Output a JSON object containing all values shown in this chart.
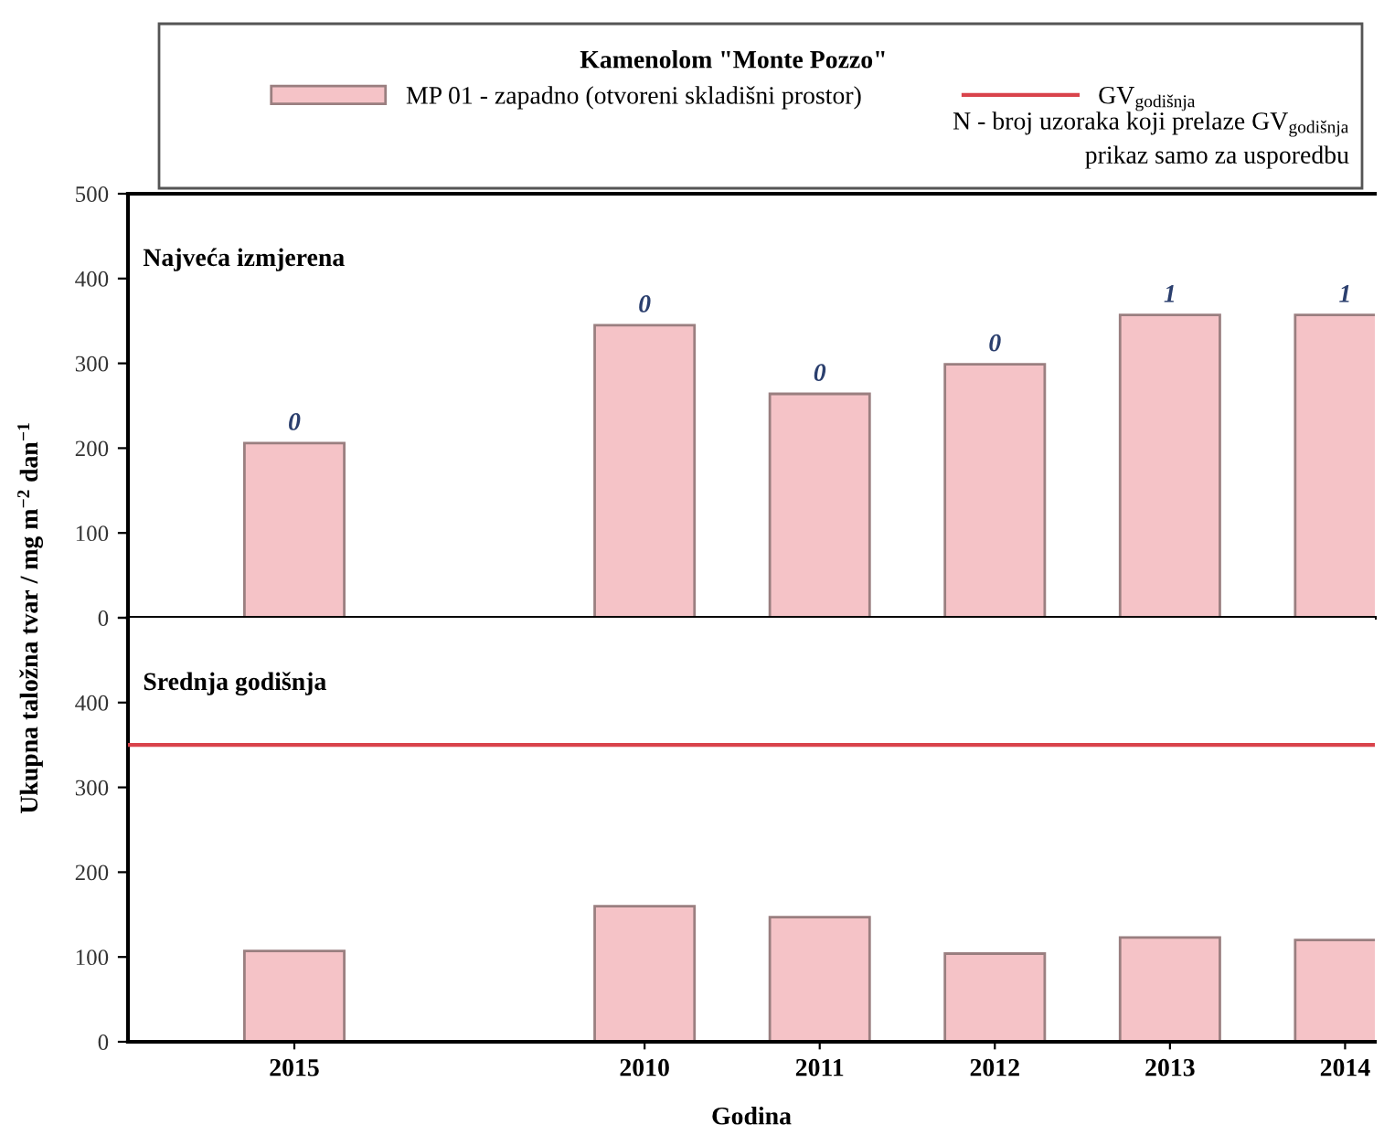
{
  "chart_data": [
    {
      "type": "bar",
      "title": "Najveća izmjerena",
      "legend_title": "Kamenolom \"Monte Pozzo\"",
      "categories": [
        "2015",
        null,
        "2010",
        "2011",
        "2012",
        "2013",
        "2014"
      ],
      "series": [
        {
          "name": "MP 01 - zapadno (otvoreni skladišni prostor)",
          "color": "#f5c3c7",
          "values": [
            206,
            null,
            345,
            264,
            299,
            357,
            357
          ]
        }
      ],
      "ylim": [
        0,
        500
      ],
      "yticks": [
        0,
        100,
        200,
        300,
        400,
        500
      ],
      "tick_labels": "y",
      "legend": "top",
      "grid": false,
      "annotations": [
        "N - broj uzoraka koji prelaze GV$_{godišnja}$",
        "prikaz samo za usporedbu",
        {
          "text": "0",
          "x": "2015",
          "y": 206
        },
        {
          "text": "0",
          "x": "2010",
          "y": 345
        },
        {
          "text": "0",
          "x": "2011",
          "y": 264
        },
        {
          "text": "0",
          "x": "2012",
          "y": 299
        },
        {
          "text": "1",
          "x": "2013",
          "y": 357
        },
        {
          "text": "1",
          "x": "2014",
          "y": 357
        }
      ]
    },
    {
      "type": "bar",
      "title": "Srednja godišnja",
      "xlabel": "Godina",
      "ylabel": "Ukupna taložna tvar / mg m$^{−2}$ dan$^{−1}$",
      "categories": [
        "2015",
        null,
        "2010",
        "2011",
        "2012",
        "2013",
        "2014"
      ],
      "series": [
        {
          "color": "#f5c3c7",
          "values": [
            107,
            null,
            160,
            147,
            104,
            123,
            120
          ]
        }
      ],
      "ylim": [
        0,
        500
      ],
      "yticks": [
        0,
        100,
        200,
        300,
        400,
        {
          "value": 500,
          "label": null
        }
      ],
      "grid": false,
      "ref_lines": [
        {
          "axis": "y",
          "value": 350,
          "label": "GV$_{godišnja}$",
          "color": "#d9434b"
        }
      ]
    }
  ]
}
